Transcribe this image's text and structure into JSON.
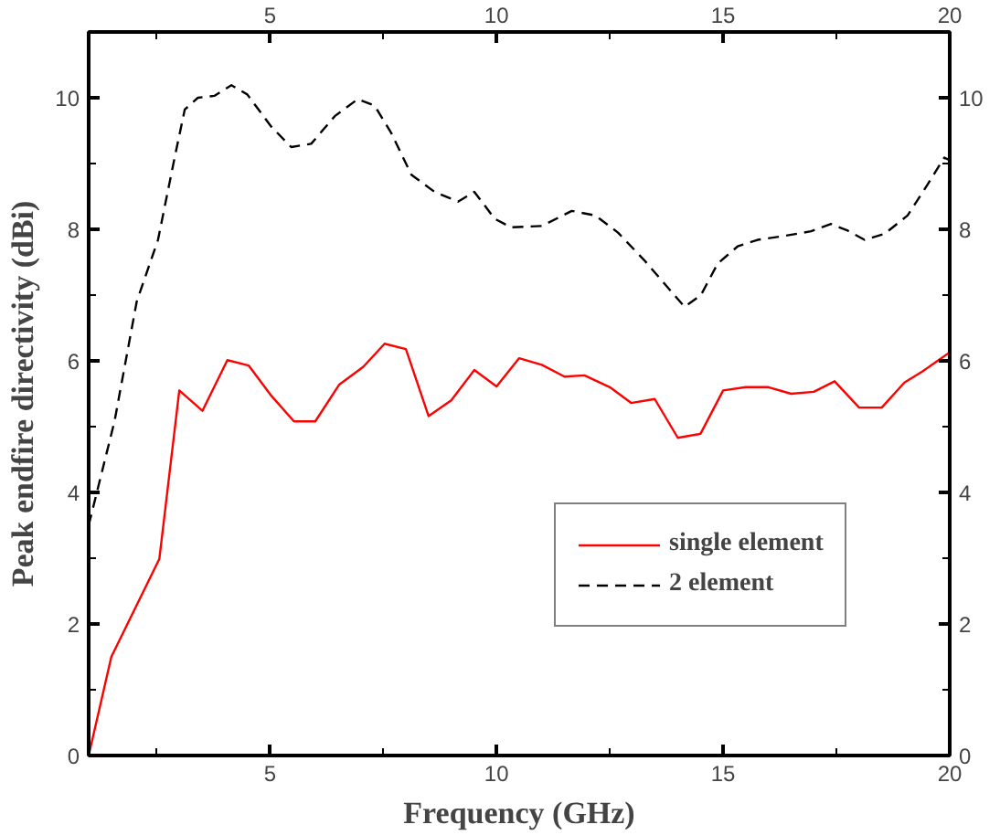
{
  "chart_data": {
    "type": "line",
    "xlabel": "Frequency (GHz)",
    "ylabel": "Peak endfire directivity (dBi)",
    "xlim": [
      1,
      20
    ],
    "xticks": [
      5,
      10,
      15,
      20
    ],
    "x2lim": [
      1,
      20
    ],
    "x2ticks": [
      5,
      10,
      15,
      20
    ],
    "ylim": [
      0,
      11
    ],
    "yticks": [
      0,
      2,
      4,
      6,
      8,
      10
    ],
    "y2lim": [
      0,
      11
    ],
    "y2ticks": [
      0,
      2,
      4,
      6,
      8,
      10
    ],
    "grid": false,
    "legend": "right",
    "marker": "none",
    "series": [
      {
        "name": "single element",
        "color": "#ff0000",
        "line_style": "solid",
        "x": [
          1,
          1.5,
          2.56,
          3.0,
          3.51,
          4.06,
          4.53,
          5.03,
          5.53,
          6.0,
          6.53,
          7.06,
          7.53,
          8.0,
          8.5,
          9.0,
          9.51,
          10.0,
          10.5,
          11.0,
          11.5,
          11.94,
          12.5,
          12.97,
          13.49,
          14.0,
          14.5,
          15.0,
          15.5,
          16.0,
          16.5,
          17.0,
          17.46,
          18.0,
          18.5,
          19.0,
          19.4,
          20
        ],
        "values": [
          0,
          1.5,
          2.99,
          5.55,
          5.24,
          6.01,
          5.93,
          5.47,
          5.08,
          5.08,
          5.64,
          5.91,
          6.26,
          6.18,
          5.16,
          5.4,
          5.86,
          5.61,
          6.04,
          5.94,
          5.76,
          5.78,
          5.6,
          5.36,
          5.42,
          4.83,
          4.89,
          5.55,
          5.6,
          5.6,
          5.5,
          5.53,
          5.69,
          5.29,
          5.29,
          5.67,
          5.84,
          6.13
        ]
      },
      {
        "name": "2 element",
        "color": "#000000",
        "line_style": "dashed",
        "x": [
          1,
          1.57,
          2.06,
          2.53,
          2.9,
          3.12,
          3.41,
          3.78,
          4.15,
          4.5,
          5.03,
          5.47,
          5.91,
          6.43,
          6.94,
          7.31,
          7.68,
          8.12,
          8.63,
          9.15,
          9.51,
          9.96,
          10.32,
          11.0,
          11.66,
          12.18,
          12.68,
          13.26,
          13.71,
          14.15,
          14.51,
          14.88,
          15.32,
          15.76,
          16.35,
          16.94,
          17.38,
          17.75,
          18.12,
          18.56,
          19.07,
          19.51,
          19.88,
          20
        ],
        "values": [
          3.5,
          5.08,
          6.9,
          7.84,
          9.1,
          9.82,
          10.0,
          10.03,
          10.19,
          10.05,
          9.56,
          9.25,
          9.3,
          9.72,
          9.98,
          9.88,
          9.46,
          8.83,
          8.57,
          8.42,
          8.57,
          8.16,
          8.03,
          8.05,
          8.28,
          8.21,
          7.95,
          7.53,
          7.17,
          6.82,
          7.0,
          7.48,
          7.74,
          7.84,
          7.9,
          7.97,
          8.08,
          7.98,
          7.84,
          7.93,
          8.21,
          8.68,
          9.09,
          9.05
        ]
      }
    ]
  }
}
